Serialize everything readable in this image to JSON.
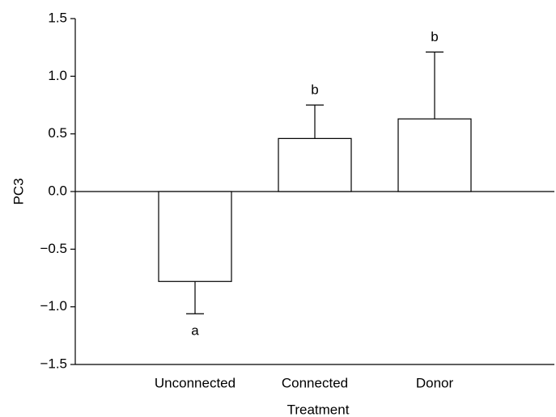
{
  "chart_data": {
    "type": "bar",
    "categories": [
      "Unconnected",
      "Connected",
      "Donor"
    ],
    "values": [
      -0.78,
      0.46,
      0.63
    ],
    "errors": [
      0.28,
      0.29,
      0.58
    ],
    "annotations": [
      "a",
      "b",
      "b"
    ],
    "color": "#ffffff",
    "xlabel": "Treatment",
    "ylabel": "PC3",
    "ylim": [
      -1.5,
      1.5
    ],
    "yticks": [
      {
        "value": -1.5,
        "label": "−1.5"
      },
      {
        "value": -1.0,
        "label": "−1.0"
      },
      {
        "value": -0.5,
        "label": "−0.5"
      },
      {
        "value": 0,
        "label": "0.0"
      },
      0.5,
      {
        "value": 1.0,
        "label": "1.0"
      },
      1.5
    ],
    "grid": false
  }
}
